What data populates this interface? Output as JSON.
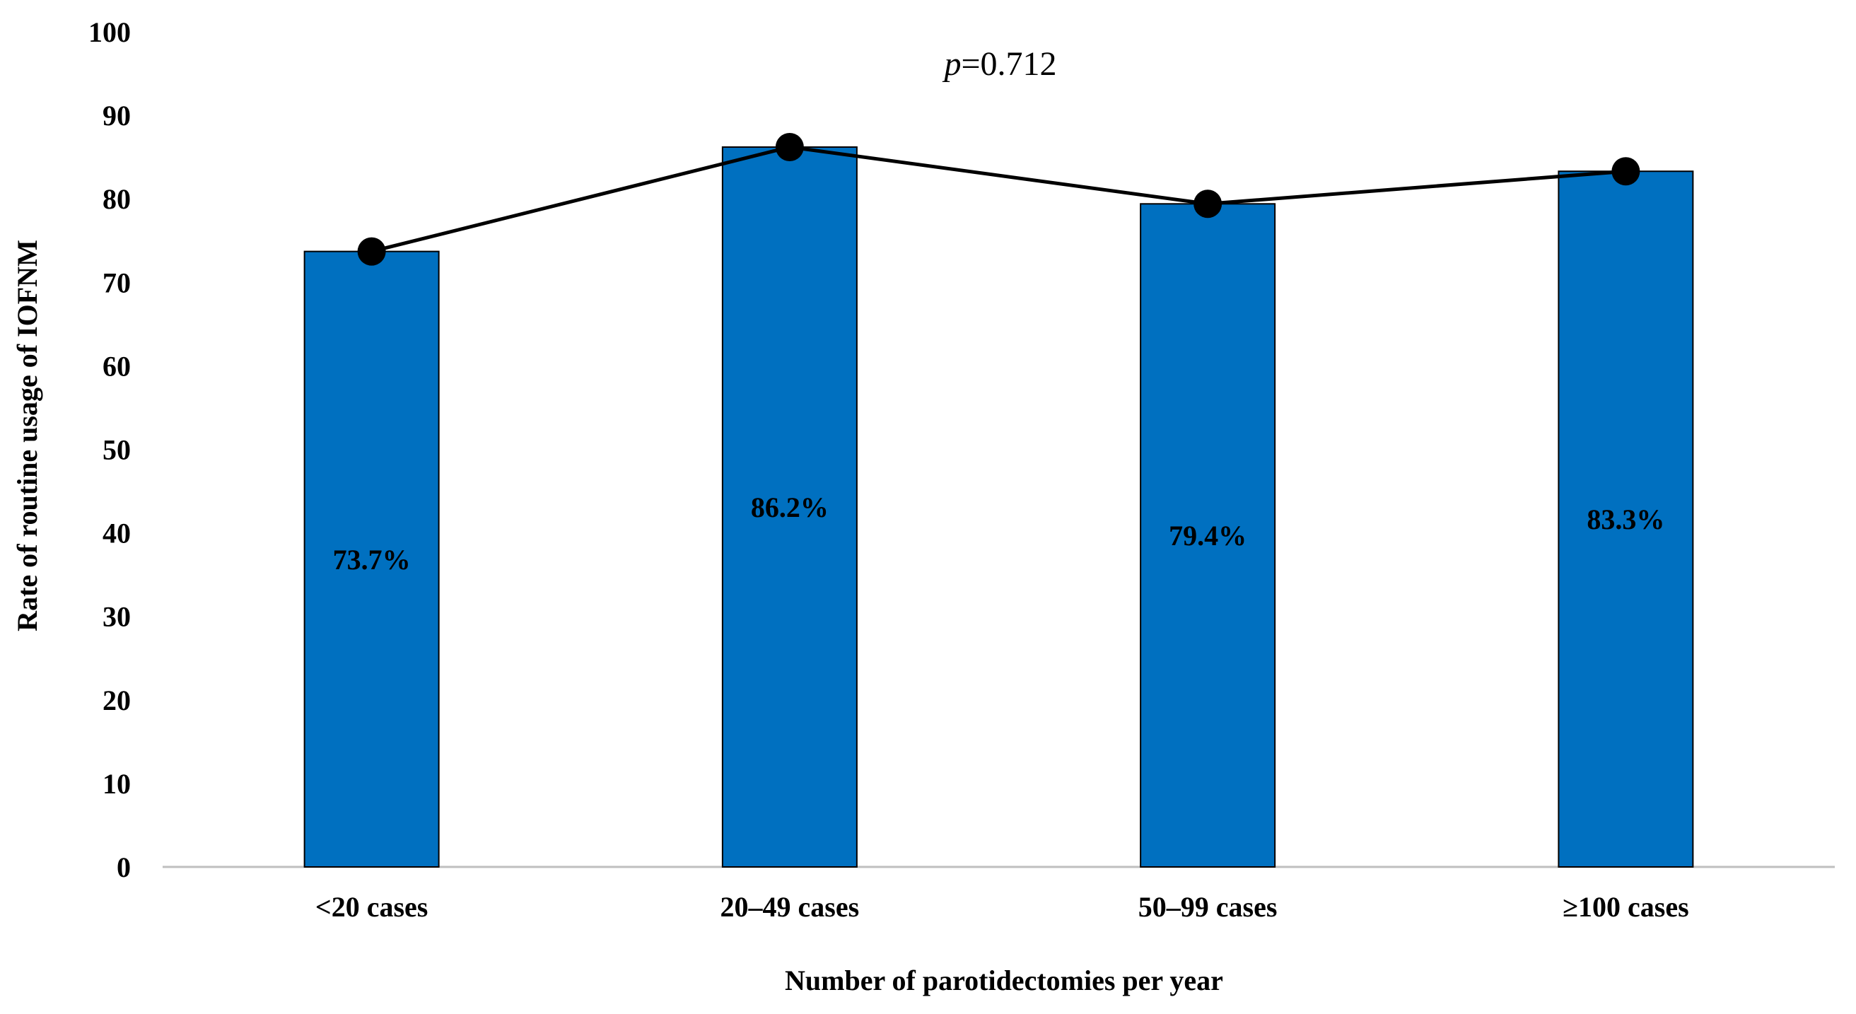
{
  "chart_data": {
    "type": "bar",
    "categories": [
      "<20 cases",
      "20–49 cases",
      "50–99 cases",
      "≥100 cases"
    ],
    "values": [
      73.7,
      86.2,
      79.4,
      83.3
    ],
    "data_labels": [
      "73.7%",
      "86.2%",
      "79.4%",
      "83.3%"
    ],
    "overlay_line": {
      "type": "line",
      "values": [
        73.7,
        86.2,
        79.4,
        83.3
      ],
      "marker": "circle",
      "color": "#000000"
    },
    "title": "",
    "annotation": {
      "italic_part": "p",
      "rest": "=0.712"
    },
    "xlabel": "Number of parotidectomies per year",
    "ylabel": "Rate of routine usage of IOFNM",
    "ylim": [
      0,
      100
    ],
    "yticks": [
      0,
      10,
      20,
      30,
      40,
      50,
      60,
      70,
      80,
      90,
      100
    ],
    "grid": false,
    "bar_color": "#0070C0",
    "bar_edge_color": "#000000",
    "axis_color": "#BFBFBF"
  }
}
